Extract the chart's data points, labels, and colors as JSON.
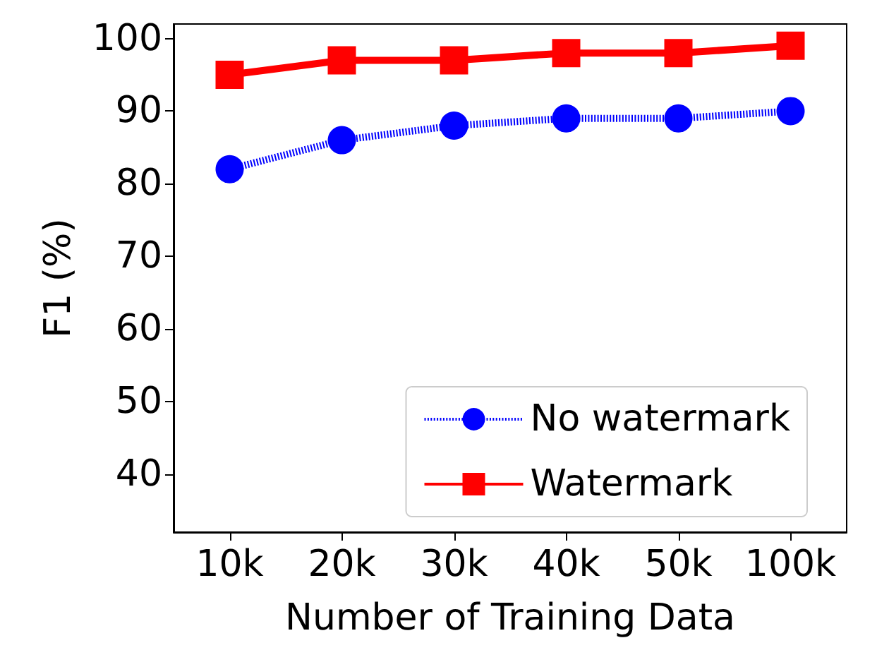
{
  "chart_data": {
    "type": "line",
    "xlabel": "Number of Training Data",
    "ylabel": "F1 (%)",
    "categories": [
      "10k",
      "20k",
      "30k",
      "40k",
      "50k",
      "100k"
    ],
    "series": [
      {
        "name": "No watermark",
        "color": "#0000ff",
        "values": [
          82,
          86,
          88,
          89,
          89,
          90
        ],
        "marker": "circle",
        "line_style": "dotted"
      },
      {
        "name": "Watermark",
        "color": "#ff0000",
        "values": [
          95,
          97,
          97,
          98,
          98,
          99
        ],
        "marker": "square",
        "line_style": "solid"
      }
    ],
    "ylim": [
      32,
      102
    ],
    "yticks": [
      40,
      50,
      60,
      70,
      80,
      90,
      100
    ],
    "grid": false,
    "legend": "bottom right"
  }
}
